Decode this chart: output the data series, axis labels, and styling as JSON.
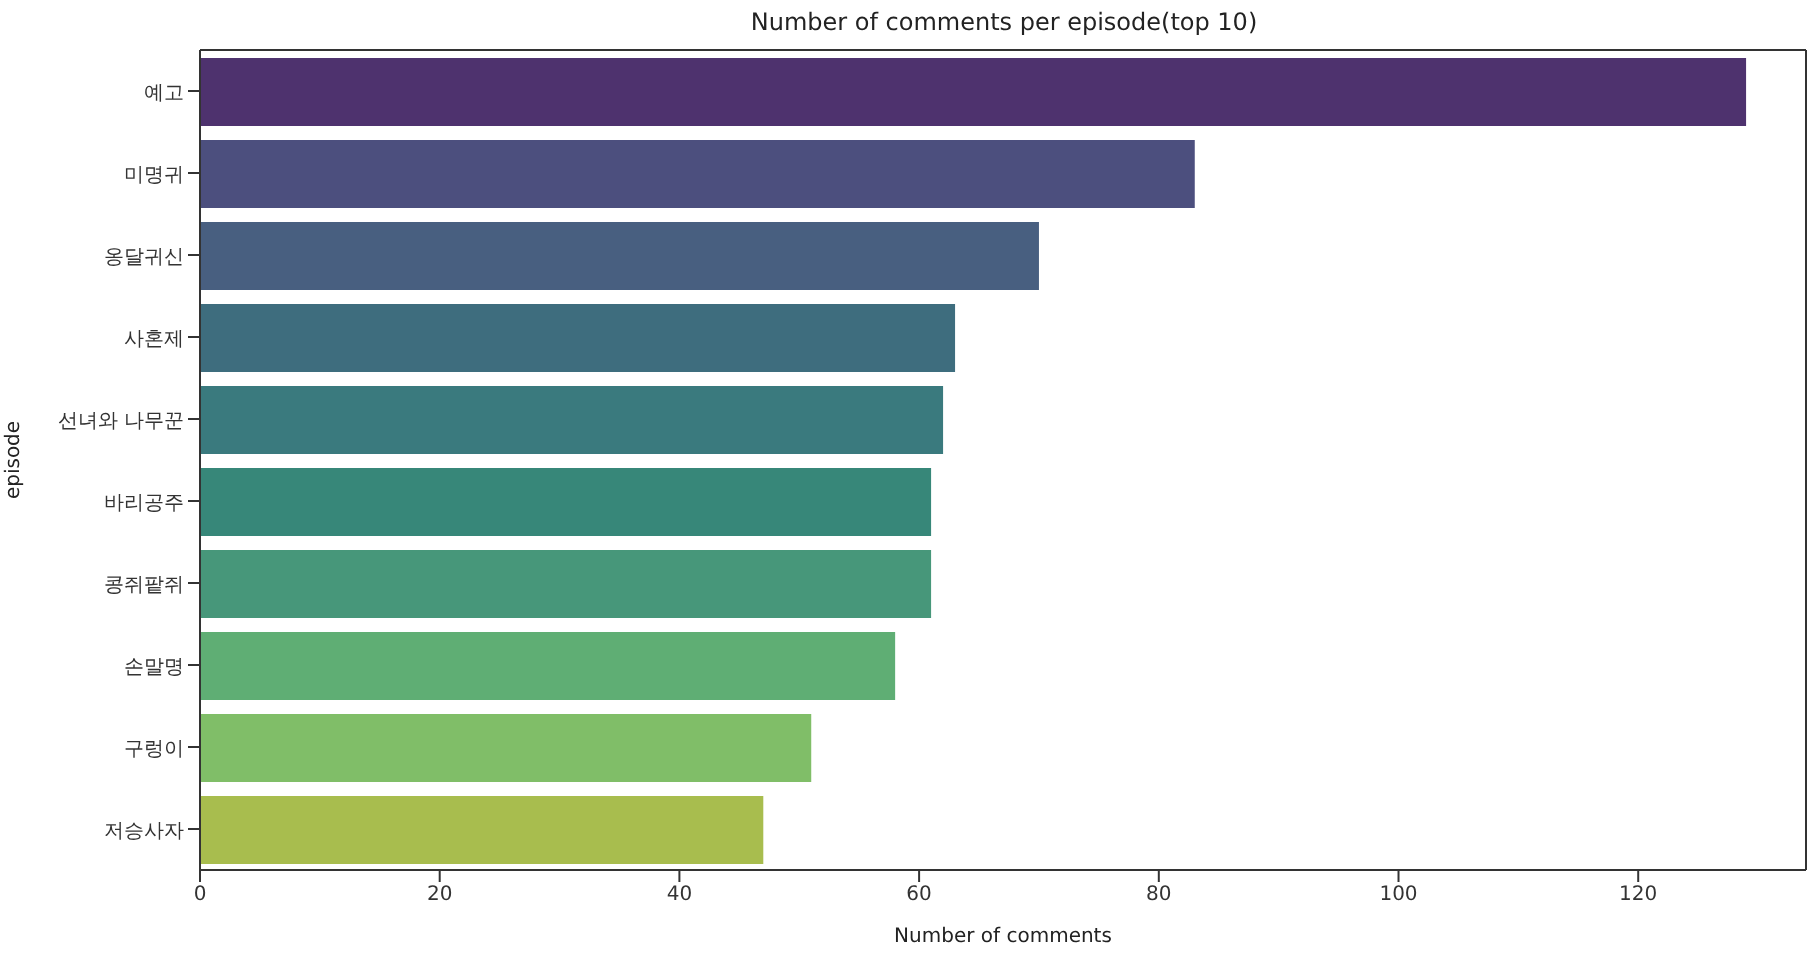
{
  "chart_data": {
    "type": "bar",
    "orientation": "horizontal",
    "title": "Number of comments per episode(top 10)",
    "xlabel": "Number of comments",
    "ylabel": "episode",
    "categories": [
      "예고",
      "미명귀",
      "옹달귀신",
      "사혼제",
      "선녀와 나무꾼",
      "바리공주",
      "콩쥐팥쥐",
      "손말명",
      "구렁이",
      "저승사자"
    ],
    "values": [
      129,
      83,
      70,
      63,
      62,
      61,
      61,
      58,
      51,
      47
    ],
    "colors": [
      "#4e326e",
      "#4c4f7e",
      "#485f80",
      "#3e6d7e",
      "#3a7a7e",
      "#378779",
      "#47977a",
      "#5fae74",
      "#80be68",
      "#a8bd4e"
    ],
    "xlim": [
      0,
      134
    ],
    "xticks": [
      0,
      20,
      40,
      60,
      80,
      100,
      120
    ]
  }
}
